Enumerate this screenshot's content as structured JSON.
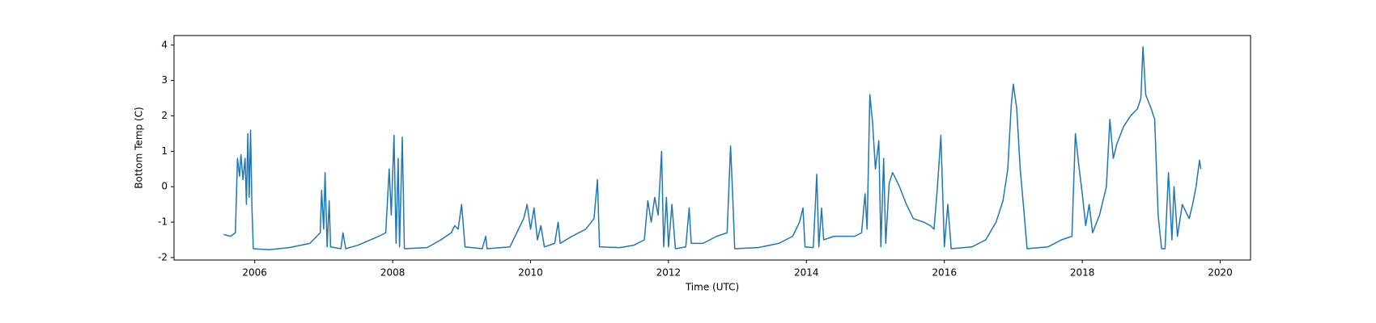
{
  "chart_data": {
    "type": "line",
    "x_label": "Time (UTC)",
    "y_label": "Bottom Temp (C)",
    "xlim": [
      2004.83,
      2020.44
    ],
    "xticks": [
      2006,
      2008,
      2010,
      2012,
      2014,
      2016,
      2018,
      2020
    ],
    "ylim": [
      -2.07,
      4.27
    ],
    "yticks": [
      -2,
      -1,
      0,
      1,
      2,
      3,
      4
    ],
    "series": [
      {
        "color": "#1f77b4",
        "x": [
          2005.55,
          2005.65,
          2005.72,
          2005.75,
          2005.78,
          2005.8,
          2005.83,
          2005.86,
          2005.88,
          2005.9,
          2005.92,
          2005.94,
          2005.96,
          2005.98,
          2006.2,
          2006.5,
          2006.8,
          2006.9,
          2006.95,
          2006.97,
          2007.0,
          2007.02,
          2007.05,
          2007.08,
          2007.1,
          2007.25,
          2007.28,
          2007.32,
          2007.5,
          2007.8,
          2007.9,
          2007.95,
          2007.98,
          2008.02,
          2008.05,
          2008.08,
          2008.1,
          2008.14,
          2008.17,
          2008.5,
          2008.7,
          2008.85,
          2008.9,
          2008.95,
          2009.0,
          2009.05,
          2009.3,
          2009.35,
          2009.37,
          2009.7,
          2009.8,
          2009.9,
          2009.95,
          2010.0,
          2010.05,
          2010.1,
          2010.15,
          2010.2,
          2010.35,
          2010.4,
          2010.43,
          2010.6,
          2010.8,
          2010.92,
          2010.97,
          2011.0,
          2011.3,
          2011.5,
          2011.65,
          2011.7,
          2011.75,
          2011.8,
          2011.85,
          2011.9,
          2011.93,
          2011.97,
          2012.0,
          2012.05,
          2012.1,
          2012.25,
          2012.3,
          2012.33,
          2012.5,
          2012.7,
          2012.85,
          2012.9,
          2012.93,
          2012.96,
          2013.3,
          2013.6,
          2013.8,
          2013.9,
          2013.95,
          2013.98,
          2014.1,
          2014.15,
          2014.18,
          2014.22,
          2014.25,
          2014.4,
          2014.7,
          2014.8,
          2014.85,
          2014.88,
          2014.92,
          2014.96,
          2015.0,
          2015.05,
          2015.08,
          2015.12,
          2015.15,
          2015.2,
          2015.25,
          2015.35,
          2015.45,
          2015.55,
          2015.7,
          2015.8,
          2015.85,
          2015.9,
          2015.95,
          2016.0,
          2016.05,
          2016.1,
          2016.4,
          2016.6,
          2016.75,
          2016.85,
          2016.92,
          2016.97,
          2017.0,
          2017.05,
          2017.1,
          2017.15,
          2017.2,
          2017.5,
          2017.7,
          2017.85,
          2017.9,
          2017.95,
          2018.0,
          2018.05,
          2018.1,
          2018.15,
          2018.25,
          2018.35,
          2018.4,
          2018.45,
          2018.5,
          2018.6,
          2018.7,
          2018.8,
          2018.85,
          2018.88,
          2018.92,
          2019.0,
          2019.05,
          2019.1,
          2019.15,
          2019.2,
          2019.25,
          2019.3,
          2019.33,
          2019.38,
          2019.45,
          2019.55,
          2019.6,
          2019.65,
          2019.7,
          2019.72
        ],
        "values": [
          -1.35,
          -1.4,
          -1.3,
          0.8,
          0.3,
          0.9,
          0.2,
          0.8,
          -0.5,
          1.5,
          -0.3,
          1.6,
          -0.6,
          -1.75,
          -1.78,
          -1.72,
          -1.6,
          -1.4,
          -1.3,
          -0.1,
          -1.2,
          0.4,
          -1.7,
          -0.4,
          -1.7,
          -1.75,
          -1.3,
          -1.75,
          -1.65,
          -1.4,
          -1.3,
          0.5,
          -0.8,
          1.45,
          -1.6,
          0.8,
          -1.7,
          1.4,
          -1.75,
          -1.72,
          -1.5,
          -1.3,
          -1.1,
          -1.2,
          -0.5,
          -1.7,
          -1.75,
          -1.4,
          -1.75,
          -1.7,
          -1.3,
          -0.9,
          -0.5,
          -1.2,
          -0.6,
          -1.5,
          -1.1,
          -1.7,
          -1.6,
          -1.0,
          -1.6,
          -1.4,
          -1.2,
          -0.9,
          0.2,
          -1.7,
          -1.72,
          -1.65,
          -1.5,
          -0.4,
          -1.0,
          -0.3,
          -0.8,
          1.0,
          -1.7,
          -0.3,
          -1.7,
          -0.5,
          -1.75,
          -1.7,
          -0.6,
          -1.6,
          -1.6,
          -1.4,
          -1.3,
          1.15,
          -0.2,
          -1.75,
          -1.72,
          -1.6,
          -1.4,
          -1.0,
          -0.6,
          -1.7,
          -1.72,
          0.35,
          -1.7,
          -0.6,
          -1.5,
          -1.4,
          -1.4,
          -1.3,
          -0.2,
          -1.2,
          2.6,
          1.8,
          0.5,
          1.3,
          -1.7,
          0.8,
          -1.6,
          0.1,
          0.4,
          0.0,
          -0.5,
          -0.9,
          -1.0,
          -1.1,
          -1.2,
          0.0,
          1.45,
          -1.7,
          -0.5,
          -1.75,
          -1.7,
          -1.5,
          -1.0,
          -0.4,
          0.5,
          2.3,
          2.9,
          2.2,
          0.5,
          -0.6,
          -1.75,
          -1.7,
          -1.5,
          -1.4,
          1.5,
          0.6,
          -0.2,
          -1.1,
          -0.5,
          -1.3,
          -0.8,
          0.0,
          1.9,
          0.8,
          1.2,
          1.7,
          2.0,
          2.2,
          2.5,
          3.95,
          2.6,
          2.2,
          1.9,
          -0.8,
          -1.75,
          -1.75,
          0.4,
          -1.5,
          0.0,
          -1.4,
          -0.5,
          -0.9,
          -0.5,
          0.0,
          0.75,
          0.5
        ]
      }
    ]
  }
}
